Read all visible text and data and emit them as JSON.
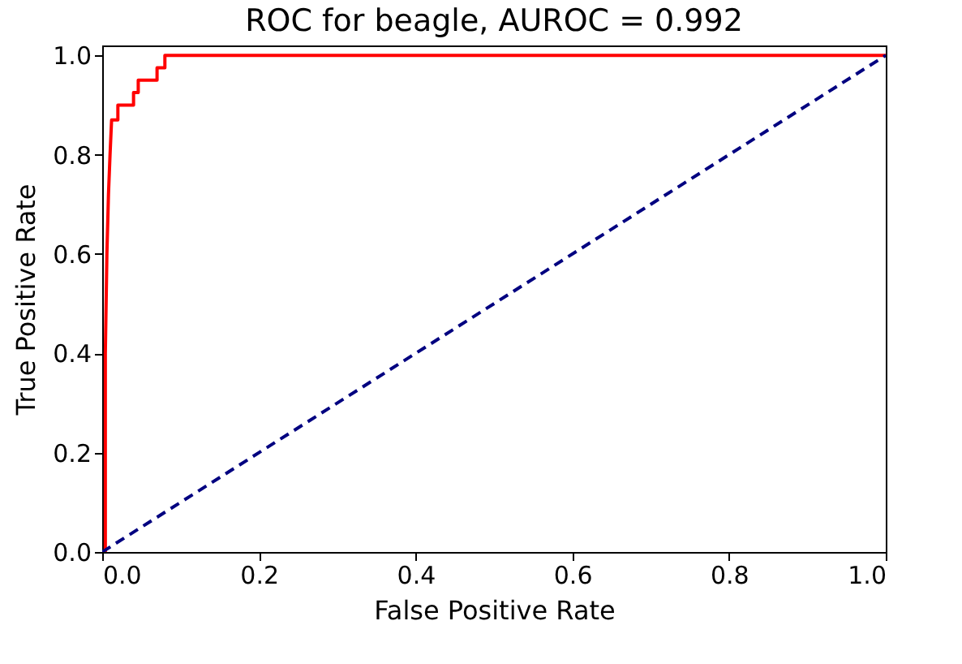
{
  "chart_data": {
    "type": "line",
    "title": "ROC for beagle, AUROC = 0.992",
    "xlabel": "False Positive Rate",
    "ylabel": "True Positive Rate",
    "xlim": [
      0,
      1
    ],
    "ylim": [
      0,
      1.02
    ],
    "xticks": [
      {
        "value": 0,
        "label": "0.0"
      },
      {
        "value": 0.2,
        "label": "0.2"
      },
      {
        "value": 0.4,
        "label": "0.4"
      },
      {
        "value": 0.6,
        "label": "0.6"
      },
      {
        "value": 0.8,
        "label": "0.8"
      },
      {
        "value": 1,
        "label": "1.0"
      }
    ],
    "yticks": [
      {
        "value": 0,
        "label": "0.0"
      },
      {
        "value": 0.2,
        "label": "0.2"
      },
      {
        "value": 0.4,
        "label": "0.4"
      },
      {
        "value": 0.6,
        "label": "0.6"
      },
      {
        "value": 0.8,
        "label": "0.8"
      },
      {
        "value": 1,
        "label": "1.0"
      }
    ],
    "grid": false,
    "series": [
      {
        "color": "#ff0000",
        "line_style": "solid",
        "x": [
          0,
          0.004,
          0.004,
          0.006,
          0.008,
          0.01,
          0.012,
          0.02,
          0.02,
          0.04,
          0.04,
          0.046,
          0.046,
          0.07,
          0.07,
          0.08,
          0.08,
          1
        ],
        "values": [
          0,
          0,
          0.4,
          0.6,
          0.72,
          0.8,
          0.87,
          0.87,
          0.9,
          0.9,
          0.925,
          0.925,
          0.95,
          0.95,
          0.975,
          0.975,
          1,
          1
        ]
      },
      {
        "color": "#000080",
        "line_style": "dashed",
        "x": [
          0,
          1
        ],
        "values": [
          0,
          1
        ]
      }
    ]
  }
}
